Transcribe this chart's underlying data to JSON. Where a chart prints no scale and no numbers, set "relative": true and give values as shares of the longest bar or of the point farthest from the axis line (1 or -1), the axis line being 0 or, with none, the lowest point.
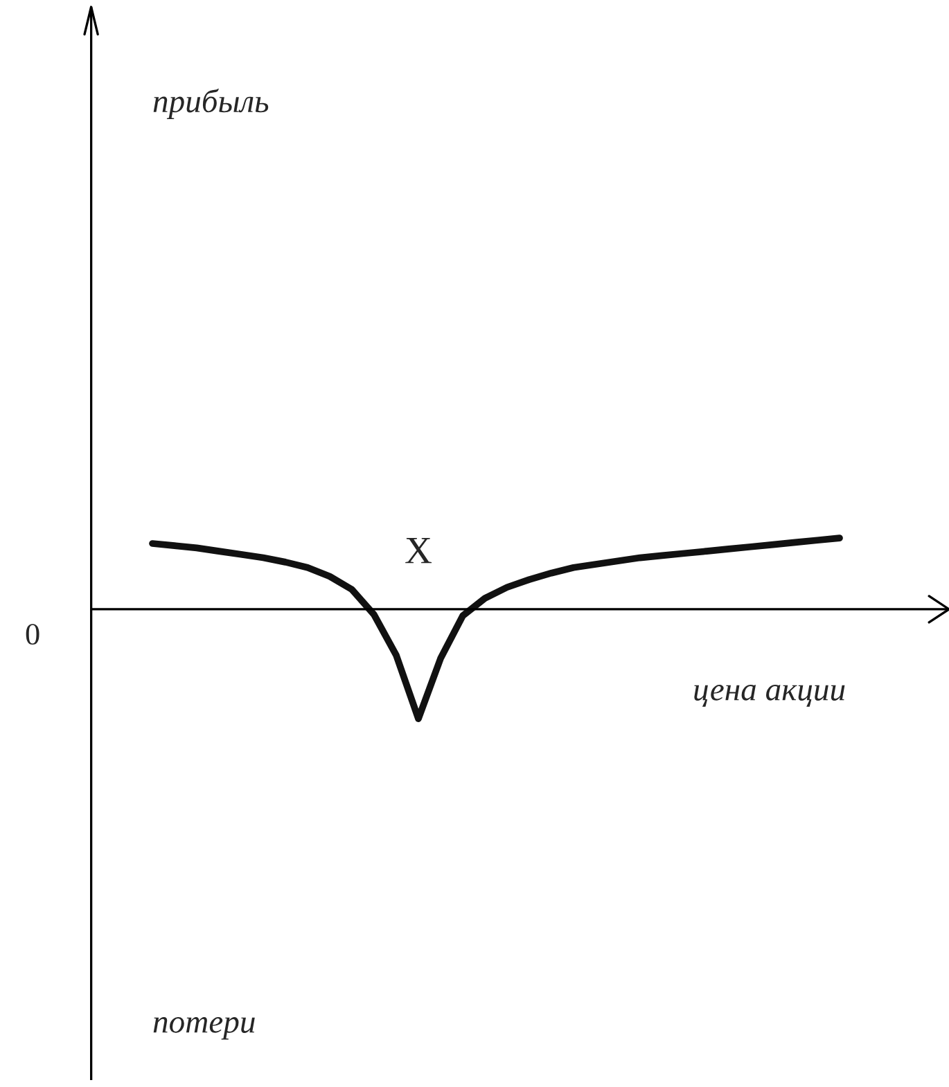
{
  "chart_data": {
    "type": "line",
    "relative": true,
    "xlabel": "цена акции",
    "annotations": [
      "X",
      "0",
      "потери",
      "прибыль"
    ],
    "categories": [
      null,
      null,
      null,
      null,
      null,
      null,
      null,
      null,
      null,
      null,
      null,
      null,
      null,
      null,
      null,
      null,
      null,
      null,
      null,
      null,
      null,
      null,
      null,
      null,
      null,
      null,
      null,
      null,
      null,
      null,
      null,
      null
    ],
    "series": [
      {
        "color": "#111111",
        "values": [
          0.6,
          0.58,
          0.56,
          0.53,
          0.5,
          0.47,
          0.43,
          0.38,
          0.3,
          0.18,
          -0.05,
          -0.42,
          -1,
          -0.45,
          -0.06,
          0.1,
          0.2,
          0.27,
          0.33,
          0.38,
          0.41,
          0.44,
          0.47,
          0.49,
          0.51,
          0.53,
          0.55,
          0.57,
          0.59,
          0.61,
          0.63,
          0.65
        ]
      }
    ],
    "legend": false
  }
}
